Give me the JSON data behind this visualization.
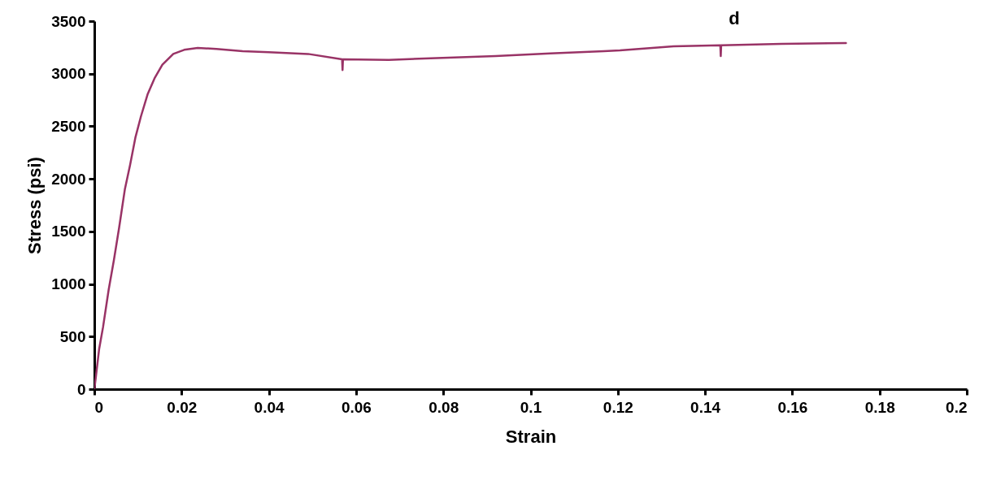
{
  "chart_data": {
    "type": "line",
    "xlabel": "Strain",
    "ylabel": "Stress (psi)",
    "annotations": [
      "d"
    ],
    "xlim": [
      0,
      0.2
    ],
    "xticks": [
      0,
      0.02,
      0.04,
      0.06,
      0.08,
      0.1,
      0.12,
      0.14,
      0.16,
      0.18,
      0.2
    ],
    "ylim": [
      0,
      3500
    ],
    "yticks": [
      0,
      500,
      1000,
      1500,
      2000,
      2500,
      3000,
      3500
    ],
    "grid": false,
    "marker": "none",
    "line_style": "solid",
    "series": [
      {
        "color": "#993366",
        "x": [
          0,
          0.0003,
          0.0011,
          0.002,
          0.0033,
          0.0045,
          0.0057,
          0.007,
          0.0082,
          0.0094,
          0.0107,
          0.0122,
          0.0138,
          0.0156,
          0.0181,
          0.0206,
          0.0237,
          0.028,
          0.034,
          0.04,
          0.049,
          0.0568,
          0.0569,
          0.057,
          0.0675,
          0.0798,
          0.092,
          0.1045,
          0.1168,
          0.1205,
          0.1328,
          0.1435,
          0.1436,
          0.1437,
          0.1575,
          0.1723
        ],
        "values": [
          0,
          97,
          380,
          590,
          948,
          1231,
          1540,
          1900,
          2133,
          2390,
          2596,
          2802,
          2956,
          3085,
          3188,
          3227,
          3245,
          3235,
          3214,
          3205,
          3188,
          3137,
          3035,
          3137,
          3132,
          3150,
          3168,
          3193,
          3214,
          3222,
          3261,
          3271,
          3168,
          3271,
          3284,
          3292
        ]
      }
    ]
  }
}
